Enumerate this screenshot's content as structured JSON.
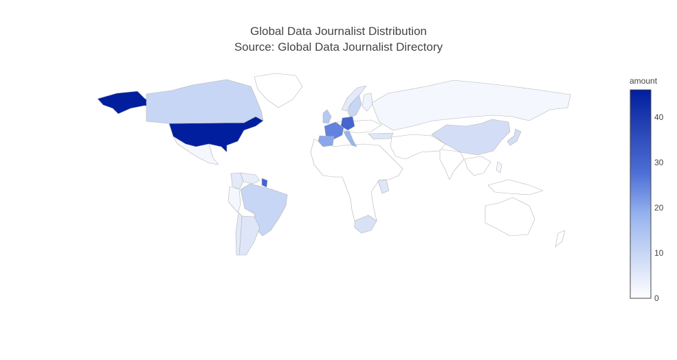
{
  "title_line1": "Global Data Journalist Distribution",
  "title_line2": "Source: Global Data Journalist Directory",
  "colorbar": {
    "title": "amount",
    "min": 0,
    "max": 46,
    "ticks": [
      "0",
      "10",
      "20",
      "30",
      "40"
    ],
    "colorscale": [
      "#ffffff",
      "#ccd9f5",
      "#97b3ee",
      "#4d6fd6",
      "#2a47b8",
      "#001e9e"
    ]
  },
  "chart_data": {
    "type": "choropleth",
    "title": "Global Data Journalist Distribution",
    "subtitle": "Source: Global Data Journalist Directory",
    "colorbar_title": "amount",
    "range": [
      0,
      46
    ],
    "locations": [
      {
        "country": "United States",
        "amount": 46
      },
      {
        "country": "Canada",
        "amount": 10
      },
      {
        "country": "Mexico",
        "amount": 2
      },
      {
        "country": "Brazil",
        "amount": 10
      },
      {
        "country": "Argentina",
        "amount": 6
      },
      {
        "country": "Colombia",
        "amount": 5
      },
      {
        "country": "Venezuela",
        "amount": 4
      },
      {
        "country": "Peru",
        "amount": 2
      },
      {
        "country": "Chile",
        "amount": 5
      },
      {
        "country": "Guyana",
        "amount": 30
      },
      {
        "country": "United Kingdom",
        "amount": 13
      },
      {
        "country": "France",
        "amount": 25
      },
      {
        "country": "Germany",
        "amount": 30
      },
      {
        "country": "Spain",
        "amount": 20
      },
      {
        "country": "Italy",
        "amount": 18
      },
      {
        "country": "Sweden",
        "amount": 10
      },
      {
        "country": "Norway",
        "amount": 5
      },
      {
        "country": "Finland",
        "amount": 3
      },
      {
        "country": "Russia",
        "amount": 2
      },
      {
        "country": "Turkey",
        "amount": 6
      },
      {
        "country": "Kenya",
        "amount": 6
      },
      {
        "country": "South Africa",
        "amount": 7
      },
      {
        "country": "China",
        "amount": 8
      },
      {
        "country": "Japan",
        "amount": 8
      },
      {
        "country": "Philippines",
        "amount": 2
      },
      {
        "country": "Greenland",
        "amount": 0
      },
      {
        "country": "Australia",
        "amount": 0
      },
      {
        "country": "India",
        "amount": 0
      }
    ]
  }
}
